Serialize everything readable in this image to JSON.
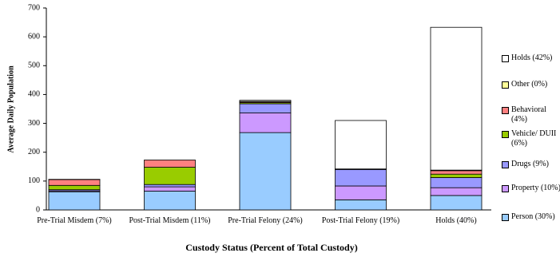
{
  "chart_data": {
    "type": "stacked-bar",
    "xlabel": "Custody Status (Percent of Total Custody)",
    "ylabel": "Average Daily Population",
    "categories": [
      "Pre-Trial Misdem (7%)",
      "Post-Trial Misdem (11%)",
      "Pre-Trial Felony (24%)",
      "Post-Trial Felony (19%)",
      "Holds (40%)"
    ],
    "series": [
      {
        "name": "Person (30%)",
        "color": "#99ccff",
        "values": [
          63,
          65,
          268,
          35,
          50
        ]
      },
      {
        "name": "Property (10%)",
        "color": "#cc99ff",
        "values": [
          3,
          15,
          68,
          48,
          27
        ]
      },
      {
        "name": "Drugs (9%)",
        "color": "#9999ff",
        "values": [
          4,
          8,
          32,
          57,
          35
        ]
      },
      {
        "name": "Vehicle/ DUII (6%)",
        "color": "#99cc00",
        "values": [
          15,
          60,
          4,
          1,
          12
        ]
      },
      {
        "name": "Behavioral (4%)",
        "color": "#ff8080",
        "values": [
          20,
          25,
          3,
          1,
          12
        ]
      },
      {
        "name": "Other (0%)",
        "color": "#ffff99",
        "values": [
          1,
          0,
          1,
          0,
          2
        ]
      },
      {
        "name": "Holds (42%)",
        "color": "#ffffff",
        "values": [
          0,
          0,
          4,
          168,
          495
        ]
      }
    ],
    "ylim": [
      0,
      700
    ],
    "yticks": [
      0,
      100,
      200,
      300,
      400,
      500,
      600,
      700
    ]
  }
}
